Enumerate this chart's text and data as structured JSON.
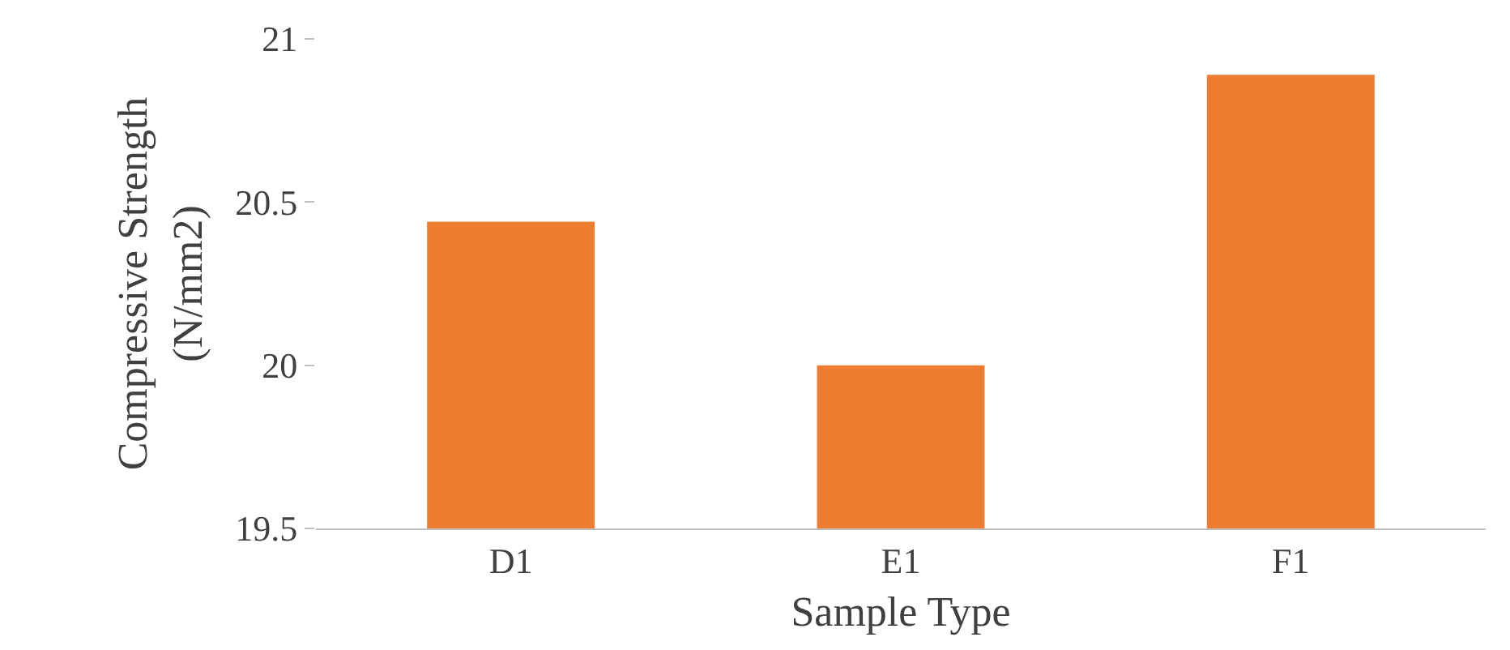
{
  "chart_data": {
    "type": "bar",
    "xlabel": "Sample Type",
    "ylabel": "Compressive Strength\n(N/mm2)",
    "categories": [
      "D1",
      "E1",
      "F1"
    ],
    "values": [
      20.44,
      20.0,
      20.89
    ],
    "color": "#ed7d31",
    "ylim": [
      19.5,
      21
    ],
    "yticks": [
      19.5,
      20,
      20.5,
      21
    ]
  }
}
